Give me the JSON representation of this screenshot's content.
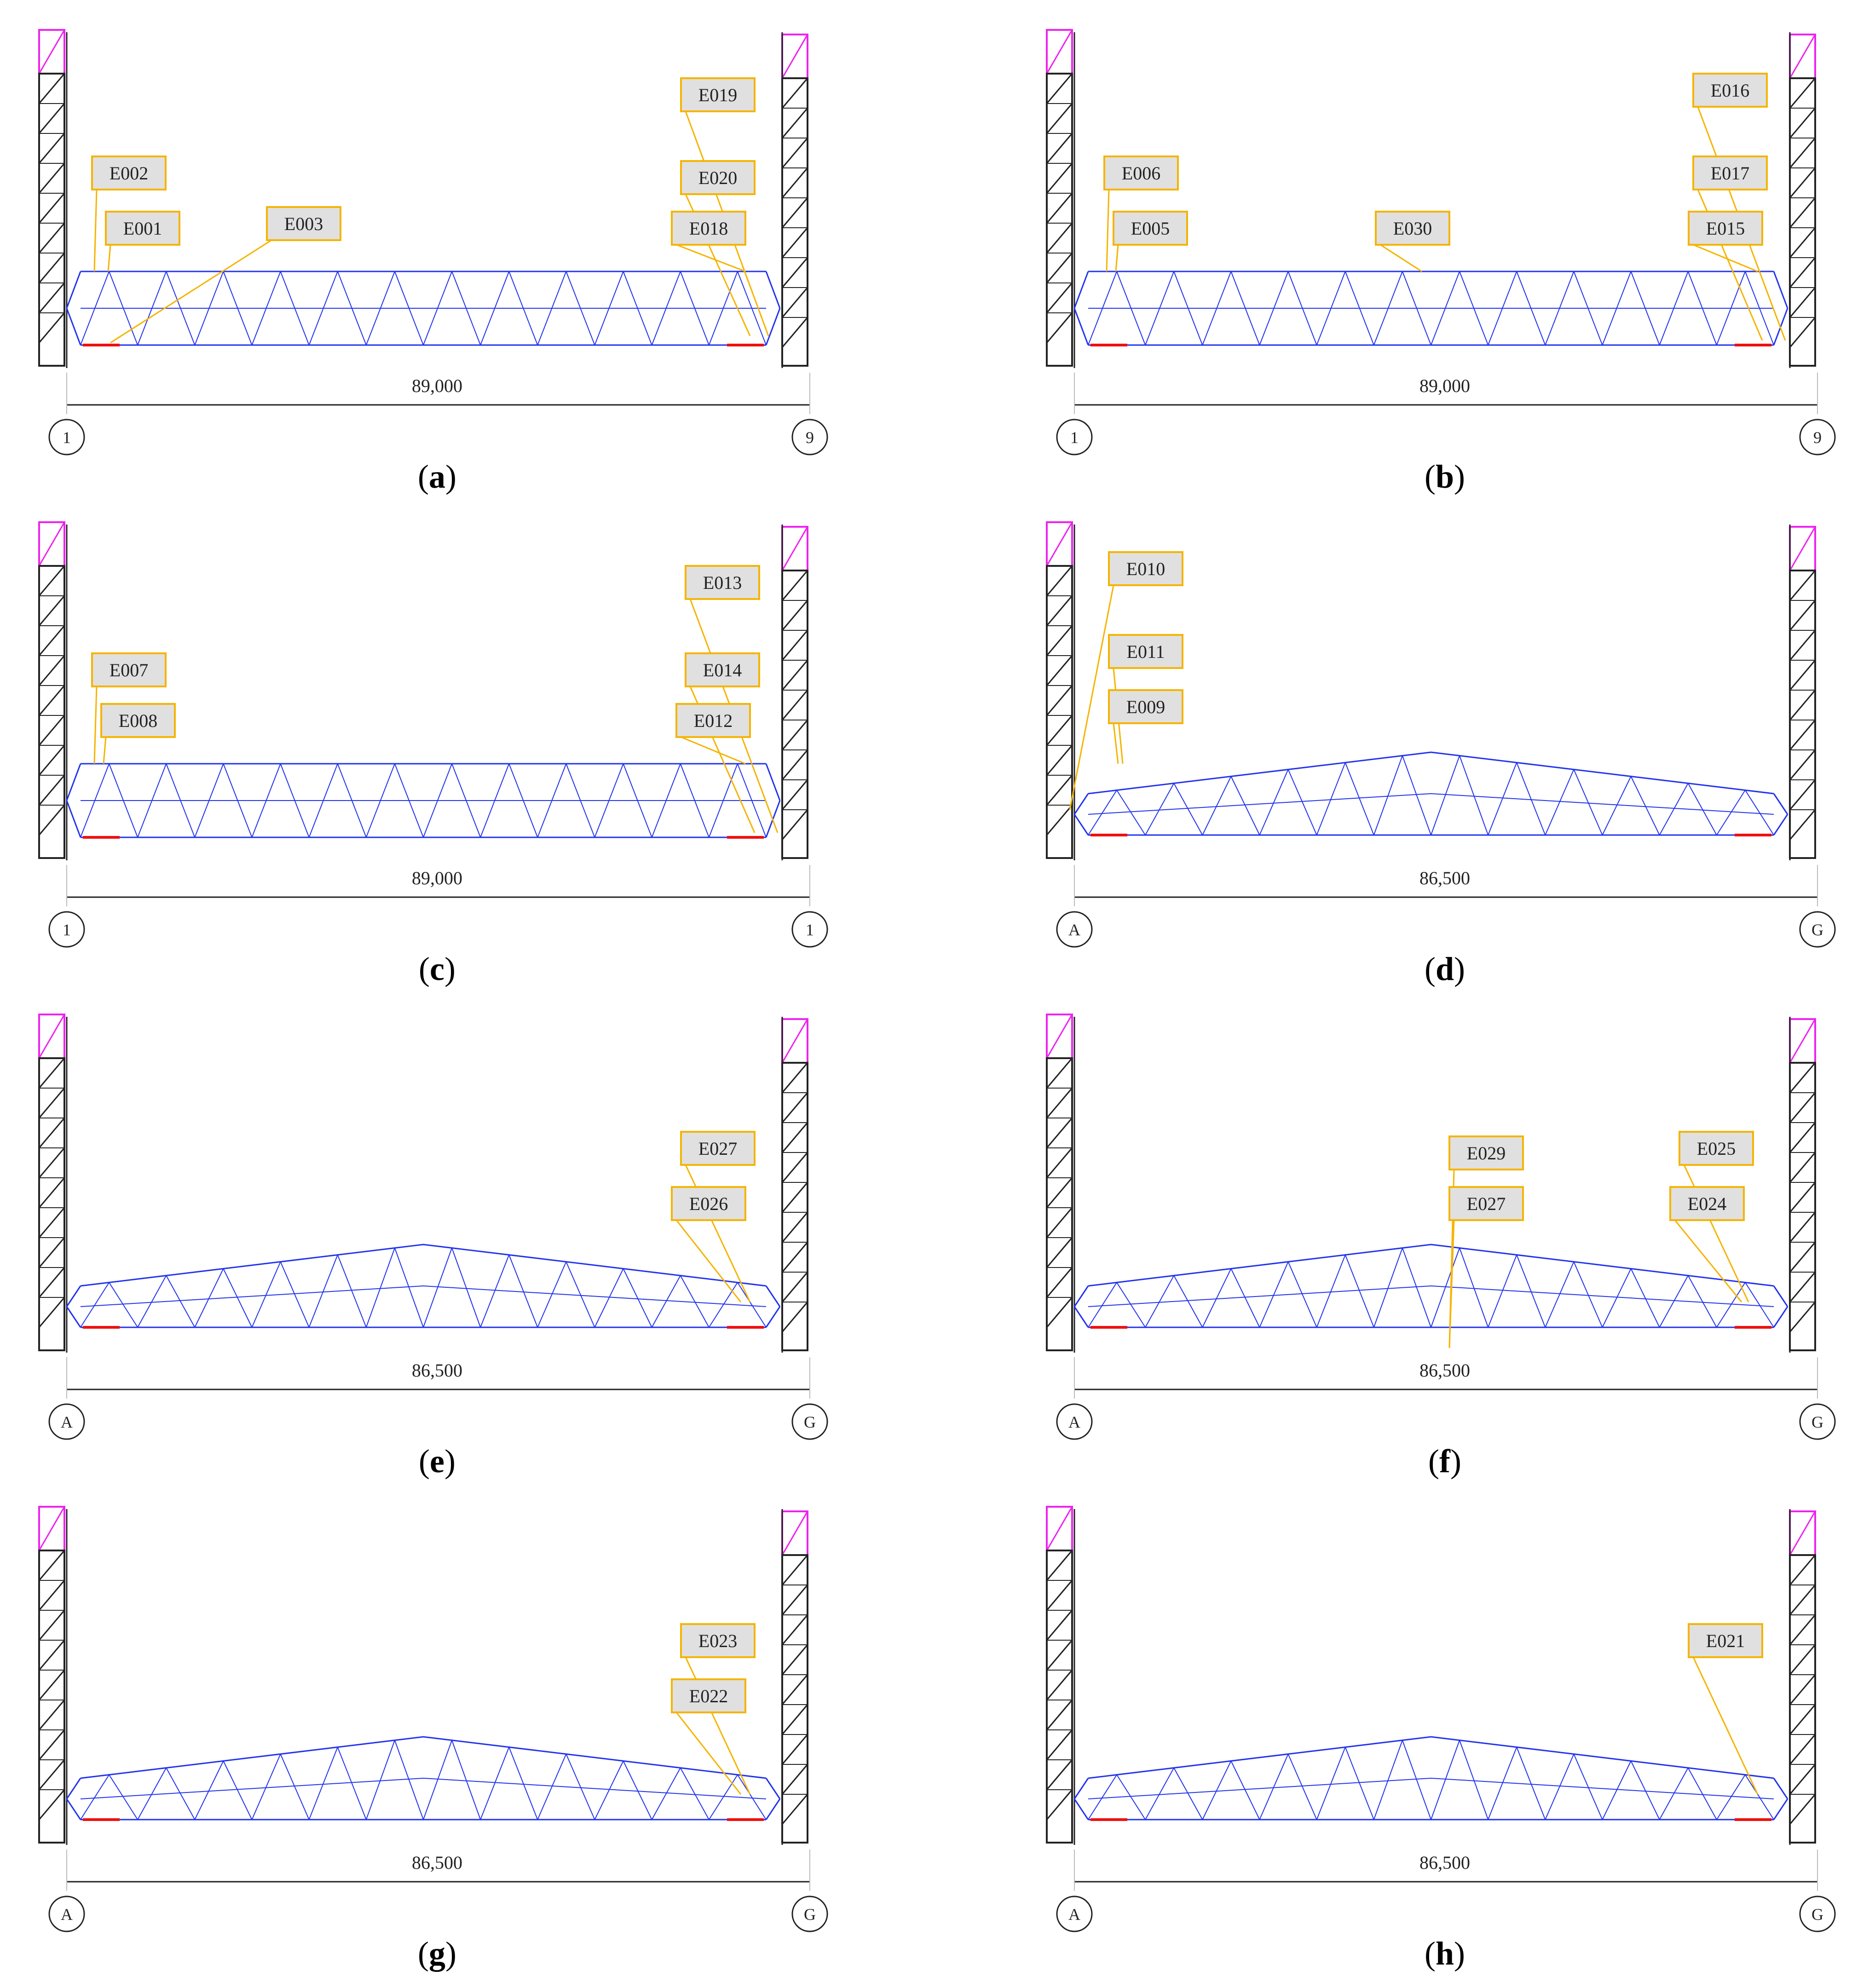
{
  "figure": {
    "panels": [
      {
        "id": "a",
        "caption": "a",
        "profile": "flat",
        "dimension": "89,000",
        "grid_left": "1",
        "grid_right": "9",
        "tags": [
          {
            "label": "E019"
          },
          {
            "label": "E002"
          },
          {
            "label": "E020"
          },
          {
            "label": "E001"
          },
          {
            "label": "E003"
          },
          {
            "label": "E018"
          }
        ]
      },
      {
        "id": "b",
        "caption": "b",
        "profile": "flat",
        "dimension": "89,000",
        "grid_left": "1",
        "grid_right": "9",
        "tags": [
          {
            "label": "E016"
          },
          {
            "label": "E006"
          },
          {
            "label": "E017"
          },
          {
            "label": "E005"
          },
          {
            "label": "E030"
          },
          {
            "label": "E015"
          }
        ]
      },
      {
        "id": "c",
        "caption": "c",
        "profile": "flat",
        "dimension": "89,000",
        "grid_left": "1",
        "grid_right": "1",
        "tags": [
          {
            "label": "E013"
          },
          {
            "label": "E007"
          },
          {
            "label": "E014"
          },
          {
            "label": "E008"
          },
          {
            "label": "E012"
          }
        ]
      },
      {
        "id": "d",
        "caption": "d",
        "profile": "arched",
        "dimension": "86,500",
        "grid_left": "A",
        "grid_right": "G",
        "tags": [
          {
            "label": "E010"
          },
          {
            "label": "E011"
          },
          {
            "label": "E009"
          }
        ]
      },
      {
        "id": "e",
        "caption": "e",
        "profile": "arched",
        "dimension": "86,500",
        "grid_left": "A",
        "grid_right": "G",
        "tags": [
          {
            "label": "E027"
          },
          {
            "label": "E026"
          }
        ]
      },
      {
        "id": "f",
        "caption": "f",
        "profile": "arched",
        "dimension": "86,500",
        "grid_left": "A",
        "grid_right": "G",
        "tags": [
          {
            "label": "E029"
          },
          {
            "label": "E027"
          },
          {
            "label": "E025"
          },
          {
            "label": "E024"
          }
        ]
      },
      {
        "id": "g",
        "caption": "g",
        "profile": "arched",
        "dimension": "86,500",
        "grid_left": "A",
        "grid_right": "G",
        "tags": [
          {
            "label": "E023"
          },
          {
            "label": "E022"
          }
        ]
      },
      {
        "id": "h",
        "caption": "h",
        "profile": "arched",
        "dimension": "86,500",
        "grid_left": "A",
        "grid_right": "G",
        "tags": [
          {
            "label": "E021"
          }
        ]
      }
    ],
    "colors": {
      "truss": "#2233ee",
      "highlight": "#ee1111",
      "leader": "#f5b400",
      "tag_fill": "#e0e0e0",
      "tower": "#222222",
      "tower_cap": "#ee22ee",
      "dimension": "#222222"
    }
  }
}
